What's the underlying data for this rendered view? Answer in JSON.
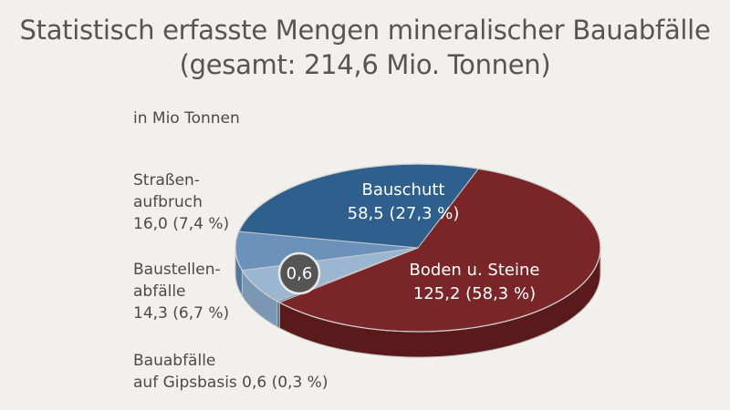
{
  "chart_data": {
    "type": "pie",
    "title_line1": "Statistisch erfasste Mengen mineralischer Bauabfälle",
    "title_line2": "(gesamt: 214,6 Mio. Tonnen)",
    "unit": "in Mio Tonnen",
    "total": 214.6,
    "slices": [
      {
        "key": "boden",
        "name": "Boden u. Steine",
        "value": 125.2,
        "percent": 58.3,
        "value_label": "125,2 (58,3 %)",
        "color": "#7a2527",
        "side_color": "#5a1a1c"
      },
      {
        "key": "gips",
        "name": "Bauabfälle auf Gipsbasis",
        "name_line1": "Bauabfälle",
        "name_line2": "auf Gipsbasis 0,6 (0,3 %)",
        "value": 0.6,
        "percent": 0.3,
        "value_label": "0,6",
        "color": "#3e6e9a",
        "side_color": "#2d557a"
      },
      {
        "key": "baustellen",
        "name": "Baustellenabfälle",
        "name_line1": "Baustellen-",
        "name_line2": "abfälle",
        "value": 14.3,
        "percent": 6.7,
        "value_label": "14,3 (6,7 %)",
        "color": "#9ab6d1",
        "side_color": "#7c97b3"
      },
      {
        "key": "strassen",
        "name": "Straßenaufbruch",
        "name_line1": "Straßen-",
        "name_line2": "aufbruch",
        "value": 16.0,
        "percent": 7.4,
        "value_label": "16,0 (7,4 %)",
        "color": "#6a92ba",
        "side_color": "#52779c"
      },
      {
        "key": "bauschutt",
        "name": "Bauschutt",
        "value": 58.5,
        "percent": 27.3,
        "value_label": "58,5 (27,3 %)",
        "color": "#2f5f8c",
        "side_color": "#224a70"
      }
    ],
    "callout_color": "#555555",
    "edge_color": "#bdbdbd"
  }
}
